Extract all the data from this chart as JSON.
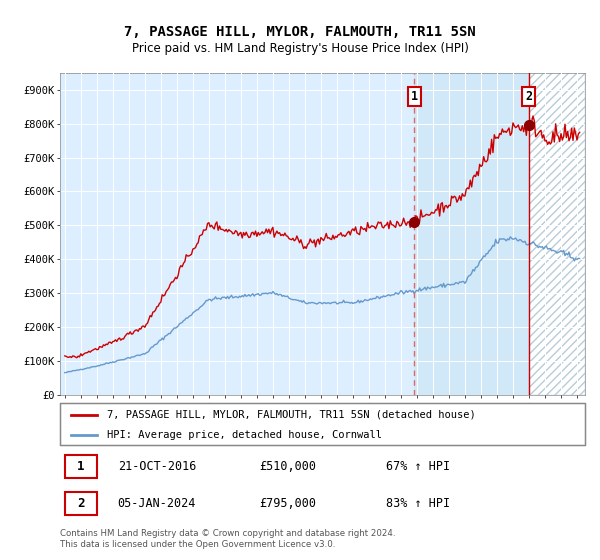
{
  "title": "7, PASSAGE HILL, MYLOR, FALMOUTH, TR11 5SN",
  "subtitle": "Price paid vs. HM Land Registry's House Price Index (HPI)",
  "legend_line1": "7, PASSAGE HILL, MYLOR, FALMOUTH, TR11 5SN (detached house)",
  "legend_line2": "HPI: Average price, detached house, Cornwall",
  "annotation1_text": "21-OCT-2016",
  "annotation1_price_str": "£510,000",
  "annotation1_hpi": "67% ↑ HPI",
  "annotation2_text": "05-JAN-2024",
  "annotation2_price_str": "£795,000",
  "annotation2_hpi": "83% ↑ HPI",
  "footer": "Contains HM Land Registry data © Crown copyright and database right 2024.\nThis data is licensed under the Open Government Licence v3.0.",
  "hpi_line_color": "#6699cc",
  "price_line_color": "#cc0000",
  "dot_color": "#8B0000",
  "bg_color": "#ddeeff",
  "bg_highlight_color": "#cce0f5",
  "ylim_max": 950000,
  "ylim_min": 0,
  "annotation1_year": 2016.8,
  "annotation2_year": 2024.0,
  "xmin": 1994.7,
  "xmax": 2027.5
}
